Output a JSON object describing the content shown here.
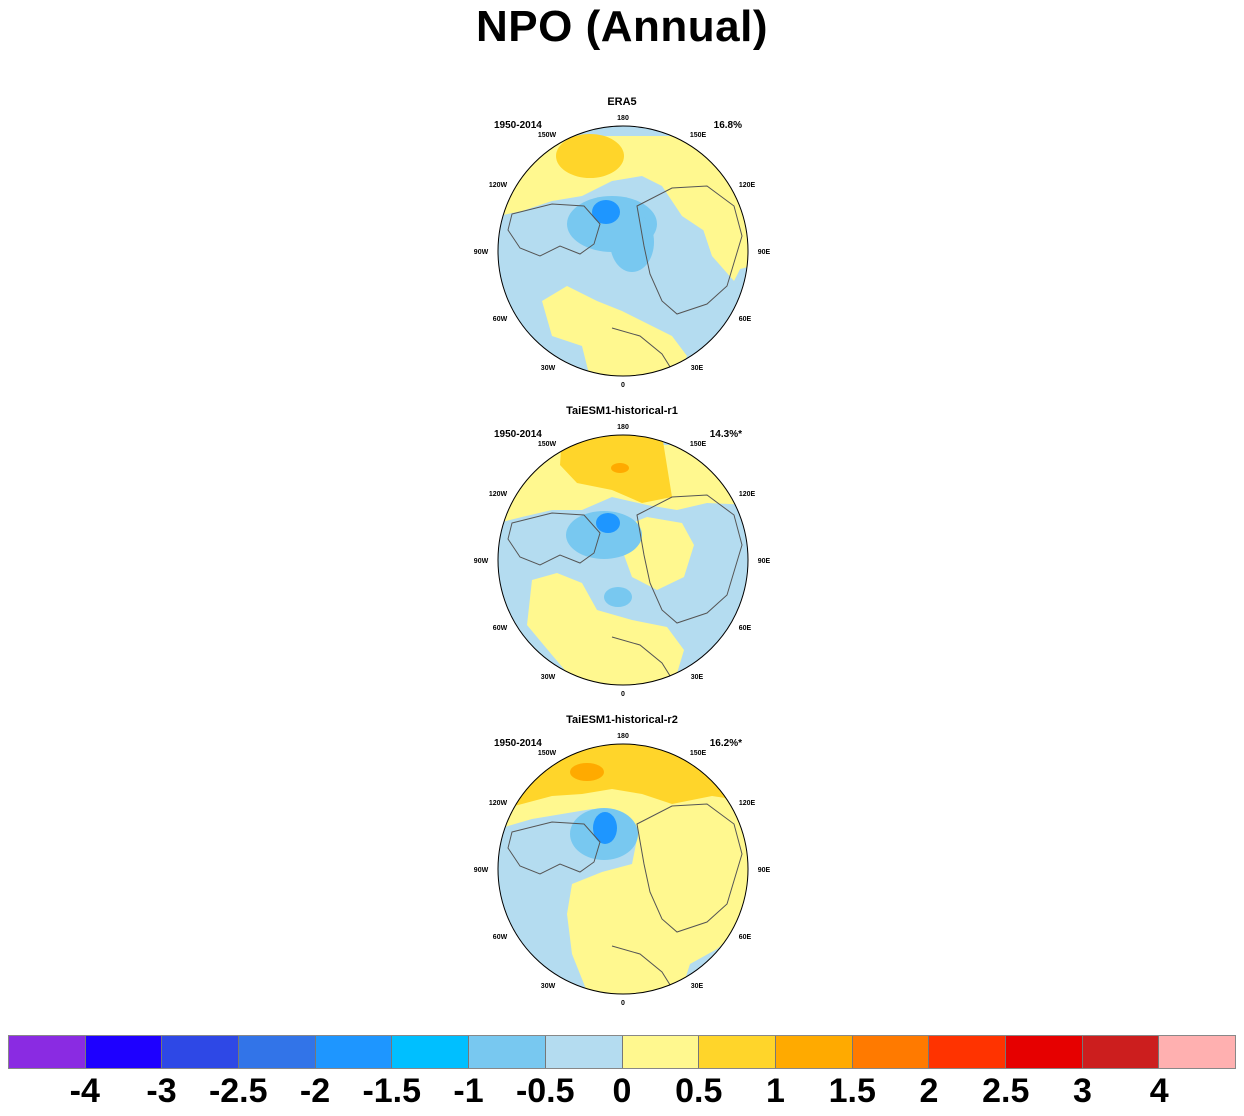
{
  "title": "NPO (Annual)",
  "panels": [
    {
      "name": "ERA5",
      "period": "1950-2014",
      "percent": "16.8%"
    },
    {
      "name": "TaiESM1-historical-r1",
      "period": "1950-2014",
      "percent": "14.3%*"
    },
    {
      "name": "TaiESM1-historical-r2",
      "period": "1950-2014",
      "percent": "16.2%*"
    }
  ],
  "longitude_labels": [
    "180",
    "150E",
    "120E",
    "90E",
    "60E",
    "30E",
    "0",
    "30W",
    "60W",
    "90W",
    "120W",
    "150W"
  ],
  "colorbar": {
    "colors": [
      "#8a2be2",
      "#1e00ff",
      "#2e48e6",
      "#3274e8",
      "#1e96ff",
      "#00bfff",
      "#78c8f0",
      "#b4dcf0",
      "#fff88f",
      "#ffd52a",
      "#ffaa00",
      "#ff7a00",
      "#ff3300",
      "#e60000",
      "#cc1e1e",
      "#ffb0b0"
    ],
    "labels": [
      "-4",
      "-3",
      "-2.5",
      "-2",
      "-1.5",
      "-1",
      "-0.5",
      "0",
      "0.5",
      "1",
      "1.5",
      "2",
      "2.5",
      "3",
      "4"
    ]
  }
}
